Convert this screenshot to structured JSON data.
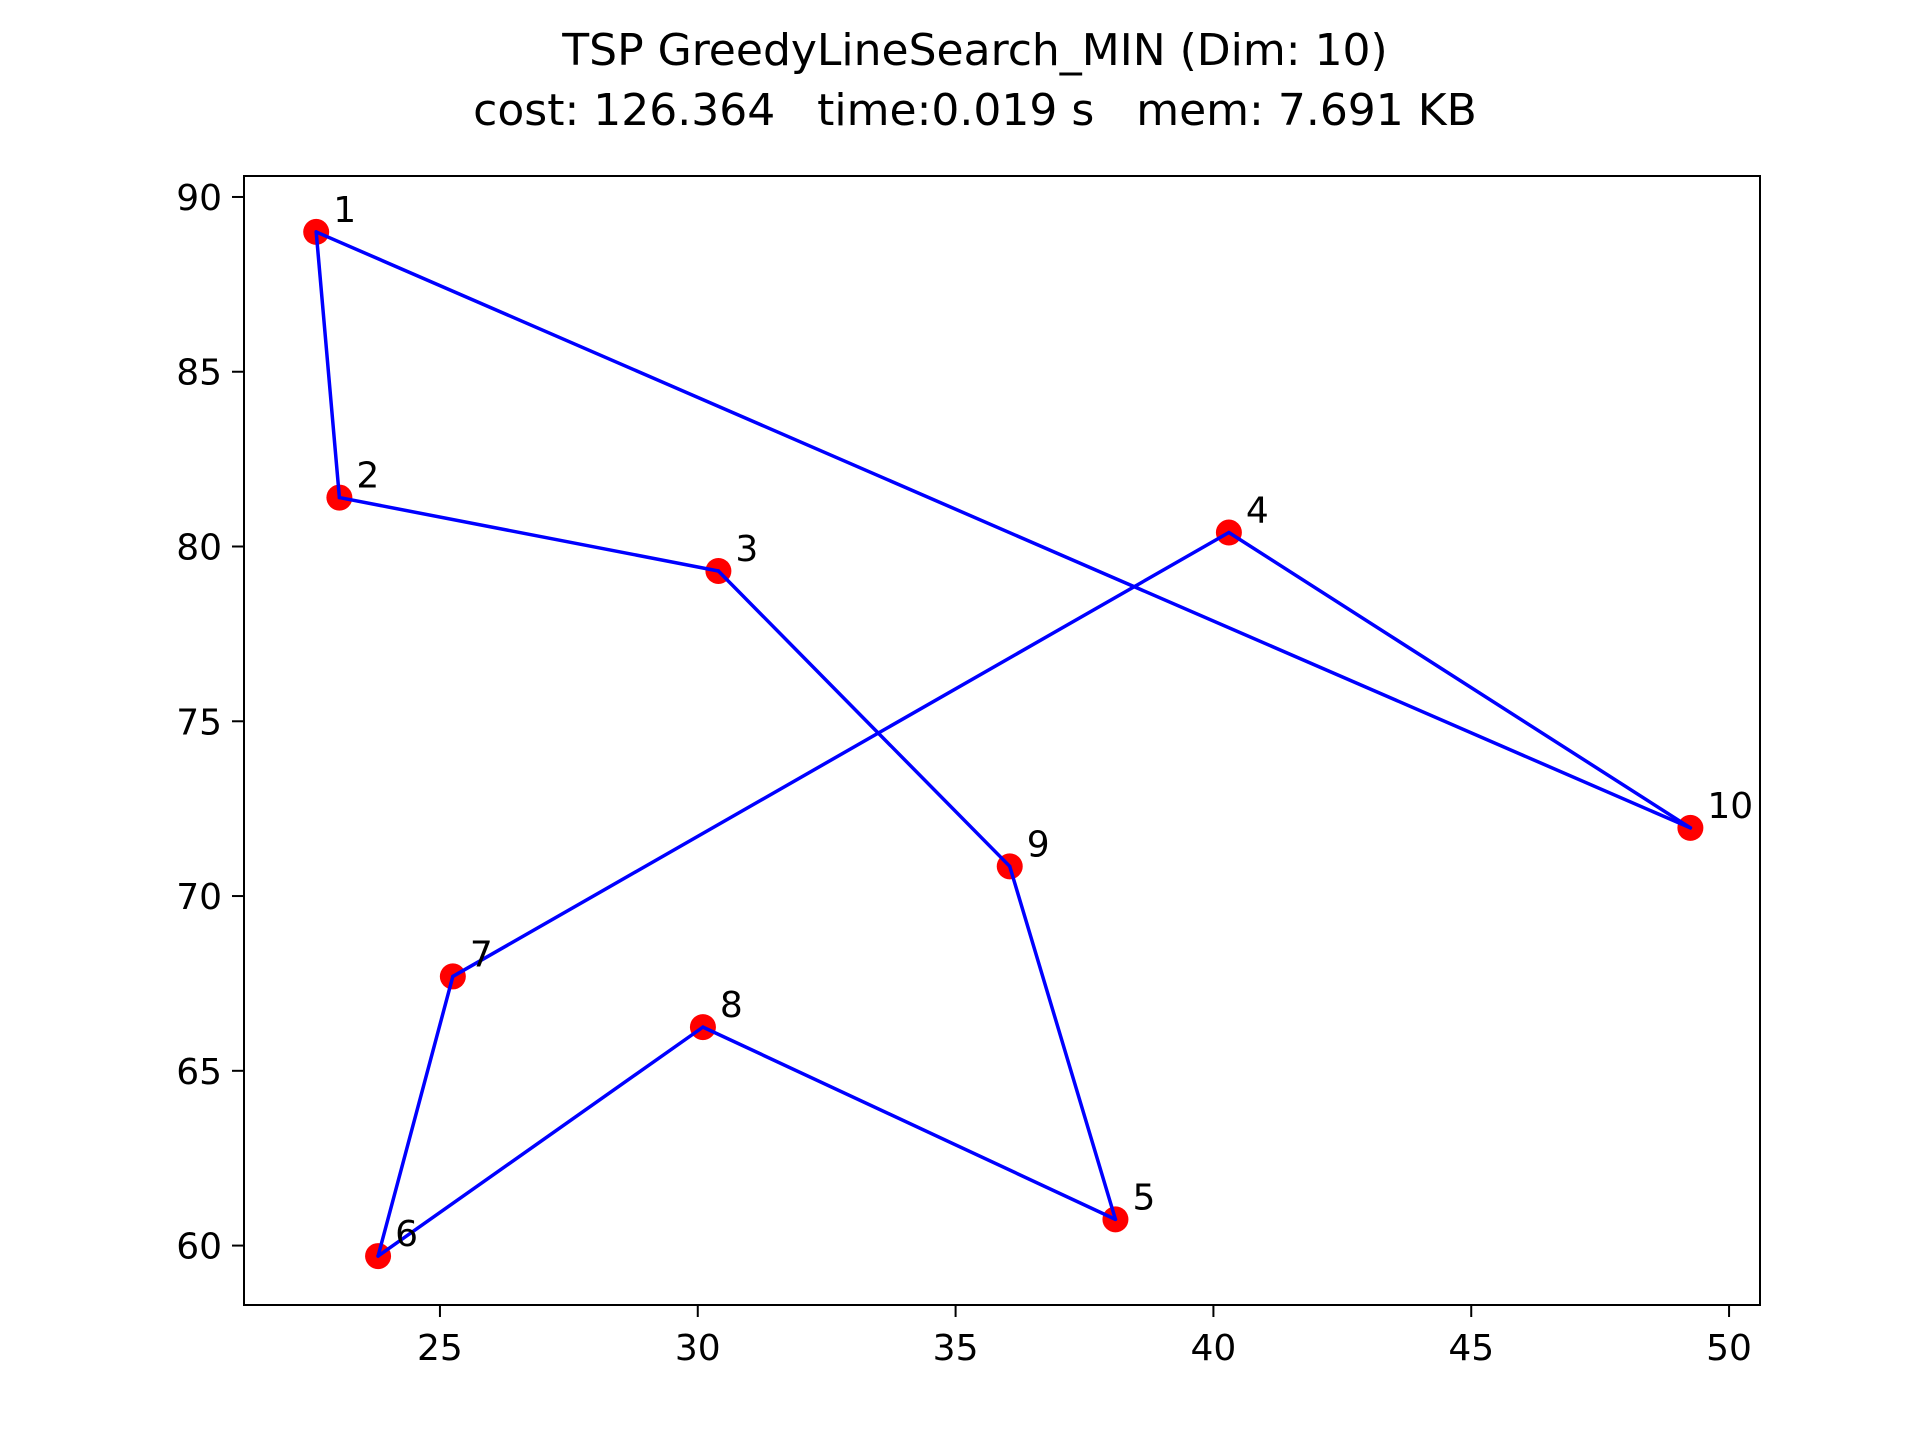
{
  "chart_data": {
    "type": "line",
    "title": "TSP GreedyLineSearch_MIN (Dim: 10)",
    "subtitle": "cost: 126.364   time:0.019 s   mem: 7.691 KB",
    "xlabel": "",
    "ylabel": "",
    "xlim": [
      21.2,
      50.6
    ],
    "ylim": [
      58.3,
      90.6
    ],
    "xticks": [
      25,
      30,
      35,
      40,
      45,
      50
    ],
    "yticks": [
      60,
      65,
      70,
      75,
      80,
      85,
      90
    ],
    "grid": false,
    "legend": "none",
    "points": [
      {
        "label": "1",
        "x": 22.6,
        "y": 89.0
      },
      {
        "label": "2",
        "x": 23.05,
        "y": 81.4
      },
      {
        "label": "3",
        "x": 30.4,
        "y": 79.3
      },
      {
        "label": "4",
        "x": 40.3,
        "y": 80.4
      },
      {
        "label": "5",
        "x": 38.1,
        "y": 60.75
      },
      {
        "label": "6",
        "x": 23.8,
        "y": 59.7
      },
      {
        "label": "7",
        "x": 25.25,
        "y": 67.7
      },
      {
        "label": "8",
        "x": 30.1,
        "y": 66.25
      },
      {
        "label": "9",
        "x": 36.05,
        "y": 70.85
      },
      {
        "label": "10",
        "x": 49.25,
        "y": 71.95
      }
    ],
    "tour": [
      "1",
      "2",
      "3",
      "9",
      "5",
      "8",
      "6",
      "7",
      "4",
      "10",
      "1"
    ],
    "colors": {
      "points": "#ff0000",
      "route": "#0000ff",
      "axes": "#000000"
    }
  }
}
